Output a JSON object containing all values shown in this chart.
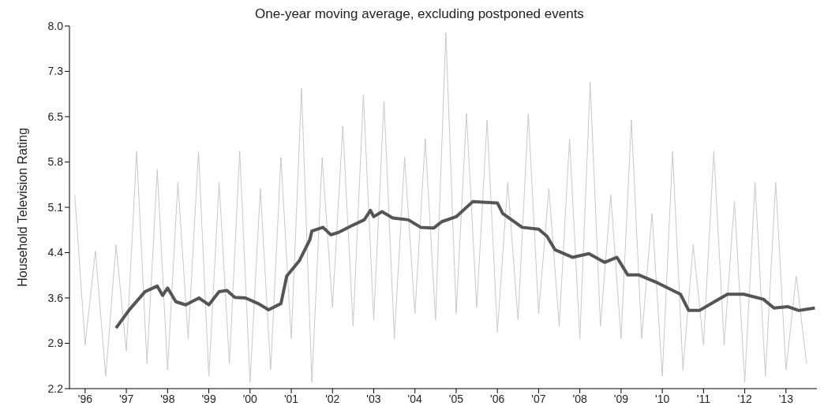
{
  "chart_data": {
    "type": "line",
    "title": "One-year moving average, excluding postponed events",
    "ylabel": "Household Television Rating",
    "xlim": [
      1995.62,
      2013.75
    ],
    "xticks": [
      {
        "value": 1996,
        "label": "'96"
      },
      {
        "value": 1997,
        "label": "'97"
      },
      {
        "value": 1998,
        "label": "'98"
      },
      {
        "value": 1999,
        "label": "'99"
      },
      {
        "value": 2000,
        "label": "'00"
      },
      {
        "value": 2001,
        "label": "'01"
      },
      {
        "value": 2002,
        "label": "'02"
      },
      {
        "value": 2003,
        "label": "'03"
      },
      {
        "value": 2004,
        "label": "'04"
      },
      {
        "value": 2005,
        "label": "'05"
      },
      {
        "value": 2006,
        "label": "'06"
      },
      {
        "value": 2007,
        "label": "'07"
      },
      {
        "value": 2008,
        "label": "'08"
      },
      {
        "value": 2009,
        "label": "'09"
      },
      {
        "value": 2010,
        "label": "'10"
      },
      {
        "value": 2011,
        "label": "'11"
      },
      {
        "value": 2012,
        "label": "'12"
      },
      {
        "value": 2013,
        "label": "'13"
      }
    ],
    "ylim": [
      2.2,
      8.0
    ],
    "yticks": [
      {
        "value": 2.2,
        "label": "2.2"
      },
      {
        "value": 2.925,
        "label": "2.9"
      },
      {
        "value": 3.65,
        "label": "3.6"
      },
      {
        "value": 4.375,
        "label": "4.4"
      },
      {
        "value": 5.1,
        "label": "5.1"
      },
      {
        "value": 5.825,
        "label": "5.8"
      },
      {
        "value": 6.55,
        "label": "6.5"
      },
      {
        "value": 7.275,
        "label": "7.3"
      },
      {
        "value": 8.0,
        "label": "8.0"
      }
    ],
    "marker": "none",
    "series": [
      {
        "color": "#c8c8c8",
        "line_style": "solid",
        "x": [
          1995.75,
          1996,
          1996.25,
          1996.5,
          1996.75,
          1997,
          1997.25,
          1997.5,
          1997.75,
          1998,
          1998.25,
          1998.5,
          1998.75,
          1999,
          1999.25,
          1999.5,
          1999.75,
          2000,
          2000.25,
          2000.5,
          2000.75,
          2001,
          2001.25,
          2001.5,
          2001.75,
          2002,
          2002.25,
          2002.5,
          2002.75,
          2003,
          2003.25,
          2003.5,
          2003.75,
          2004,
          2004.25,
          2004.5,
          2004.75,
          2005,
          2005.25,
          2005.5,
          2005.75,
          2006,
          2006.25,
          2006.5,
          2006.75,
          2007,
          2007.25,
          2007.5,
          2007.75,
          2008,
          2008.25,
          2008.5,
          2008.75,
          2009,
          2009.25,
          2009.5,
          2009.75,
          2010,
          2010.25,
          2010.5,
          2010.75,
          2011,
          2011.25,
          2011.5,
          2011.75,
          2012,
          2012.25,
          2012.5,
          2012.75,
          2013,
          2013.25,
          2013.5
        ],
        "values": [
          5.3,
          2.9,
          4.4,
          2.4,
          4.5,
          2.8,
          6.0,
          2.6,
          5.7,
          2.5,
          5.5,
          3.0,
          6.0,
          2.4,
          5.5,
          2.6,
          6.0,
          2.3,
          5.4,
          2.5,
          5.9,
          3.0,
          7.0,
          2.3,
          5.9,
          3.5,
          6.4,
          3.2,
          6.9,
          3.3,
          6.8,
          3.0,
          5.9,
          3.4,
          6.2,
          3.3,
          7.9,
          3.4,
          6.6,
          3.5,
          6.5,
          3.1,
          5.5,
          3.3,
          6.6,
          3.4,
          5.4,
          3.2,
          6.2,
          3.0,
          7.1,
          3.2,
          5.3,
          3.0,
          6.5,
          3.0,
          5.0,
          2.4,
          6.0,
          2.5,
          4.5,
          2.9,
          6.0,
          2.9,
          5.2,
          2.3,
          5.5,
          2.4,
          5.5,
          2.5,
          4.0,
          2.6
        ]
      },
      {
        "color": "#555555",
        "line_style": "solid",
        "x": [
          1996.75,
          1997.07,
          1997.45,
          1997.75,
          1997.88,
          1998.0,
          1998.2,
          1998.44,
          1998.76,
          1999.0,
          1999.25,
          1999.44,
          1999.63,
          1999.89,
          2000.2,
          2000.45,
          2000.75,
          2000.89,
          2001.2,
          2001.45,
          2001.5,
          2001.77,
          2001.96,
          2002.15,
          2002.45,
          2002.77,
          2002.92,
          2003.0,
          2003.2,
          2003.46,
          2003.84,
          2004.14,
          2004.46,
          2004.65,
          2005.0,
          2005.4,
          2006.0,
          2006.13,
          2006.6,
          2007.0,
          2007.2,
          2007.4,
          2007.82,
          2008.22,
          2008.6,
          2008.9,
          2009.16,
          2009.42,
          2009.89,
          2010.44,
          2010.64,
          2010.9,
          2011.24,
          2011.58,
          2011.98,
          2012.45,
          2012.71,
          2013.05,
          2013.31,
          2013.7
        ],
        "values": [
          3.17,
          3.46,
          3.75,
          3.84,
          3.69,
          3.81,
          3.59,
          3.54,
          3.65,
          3.54,
          3.75,
          3.77,
          3.66,
          3.65,
          3.56,
          3.46,
          3.56,
          4.0,
          4.25,
          4.58,
          4.72,
          4.78,
          4.66,
          4.7,
          4.8,
          4.9,
          5.05,
          4.95,
          5.03,
          4.93,
          4.9,
          4.78,
          4.77,
          4.87,
          4.95,
          5.19,
          5.17,
          5.0,
          4.78,
          4.75,
          4.64,
          4.42,
          4.3,
          4.36,
          4.22,
          4.3,
          4.02,
          4.02,
          3.89,
          3.71,
          3.45,
          3.45,
          3.58,
          3.71,
          3.71,
          3.63,
          3.49,
          3.51,
          3.45,
          3.49
        ]
      }
    ]
  }
}
